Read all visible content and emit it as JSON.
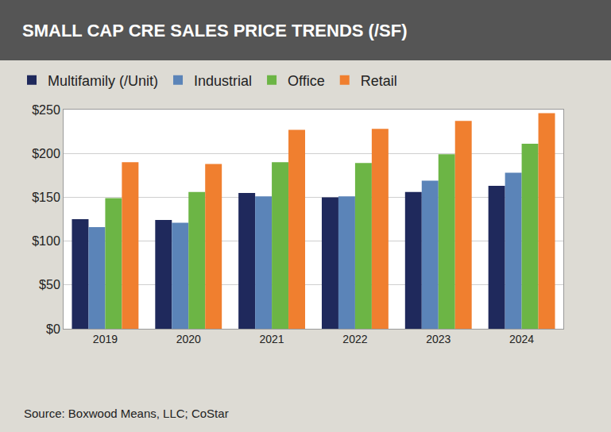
{
  "chart_data": {
    "type": "bar",
    "title": "SMALL CAP CRE SALES PRICE TRENDS (/SF)",
    "annotations": [
      "Source: Boxwood Means, LLC; CoStar"
    ],
    "categories": [
      "2019",
      "2020",
      "2021",
      "2022",
      "2023",
      "2024"
    ],
    "series": [
      {
        "name": "Multifamily (/Unit)",
        "color": "#1f295c",
        "values": [
          125,
          124,
          155,
          150,
          156,
          163
        ]
      },
      {
        "name": "Industrial",
        "color": "#5b84b8",
        "values": [
          116,
          121,
          151,
          151,
          169,
          178
        ]
      },
      {
        "name": "Office",
        "color": "#6cb545",
        "values": [
          149,
          156,
          190,
          189,
          199,
          211
        ]
      },
      {
        "name": "Retail",
        "color": "#f07f2f",
        "values": [
          190,
          188,
          227,
          228,
          237,
          246
        ]
      }
    ],
    "ylim": [
      0,
      250
    ],
    "yticks": [
      {
        "value": 0,
        "label": "$0"
      },
      {
        "value": 50,
        "label": "$50"
      },
      {
        "value": 100,
        "label": "$100"
      },
      {
        "value": 150,
        "label": "$150"
      },
      {
        "value": 200,
        "label": "$200"
      },
      {
        "value": 250,
        "label": "$250"
      }
    ],
    "grid": true,
    "legend": "top left"
  }
}
